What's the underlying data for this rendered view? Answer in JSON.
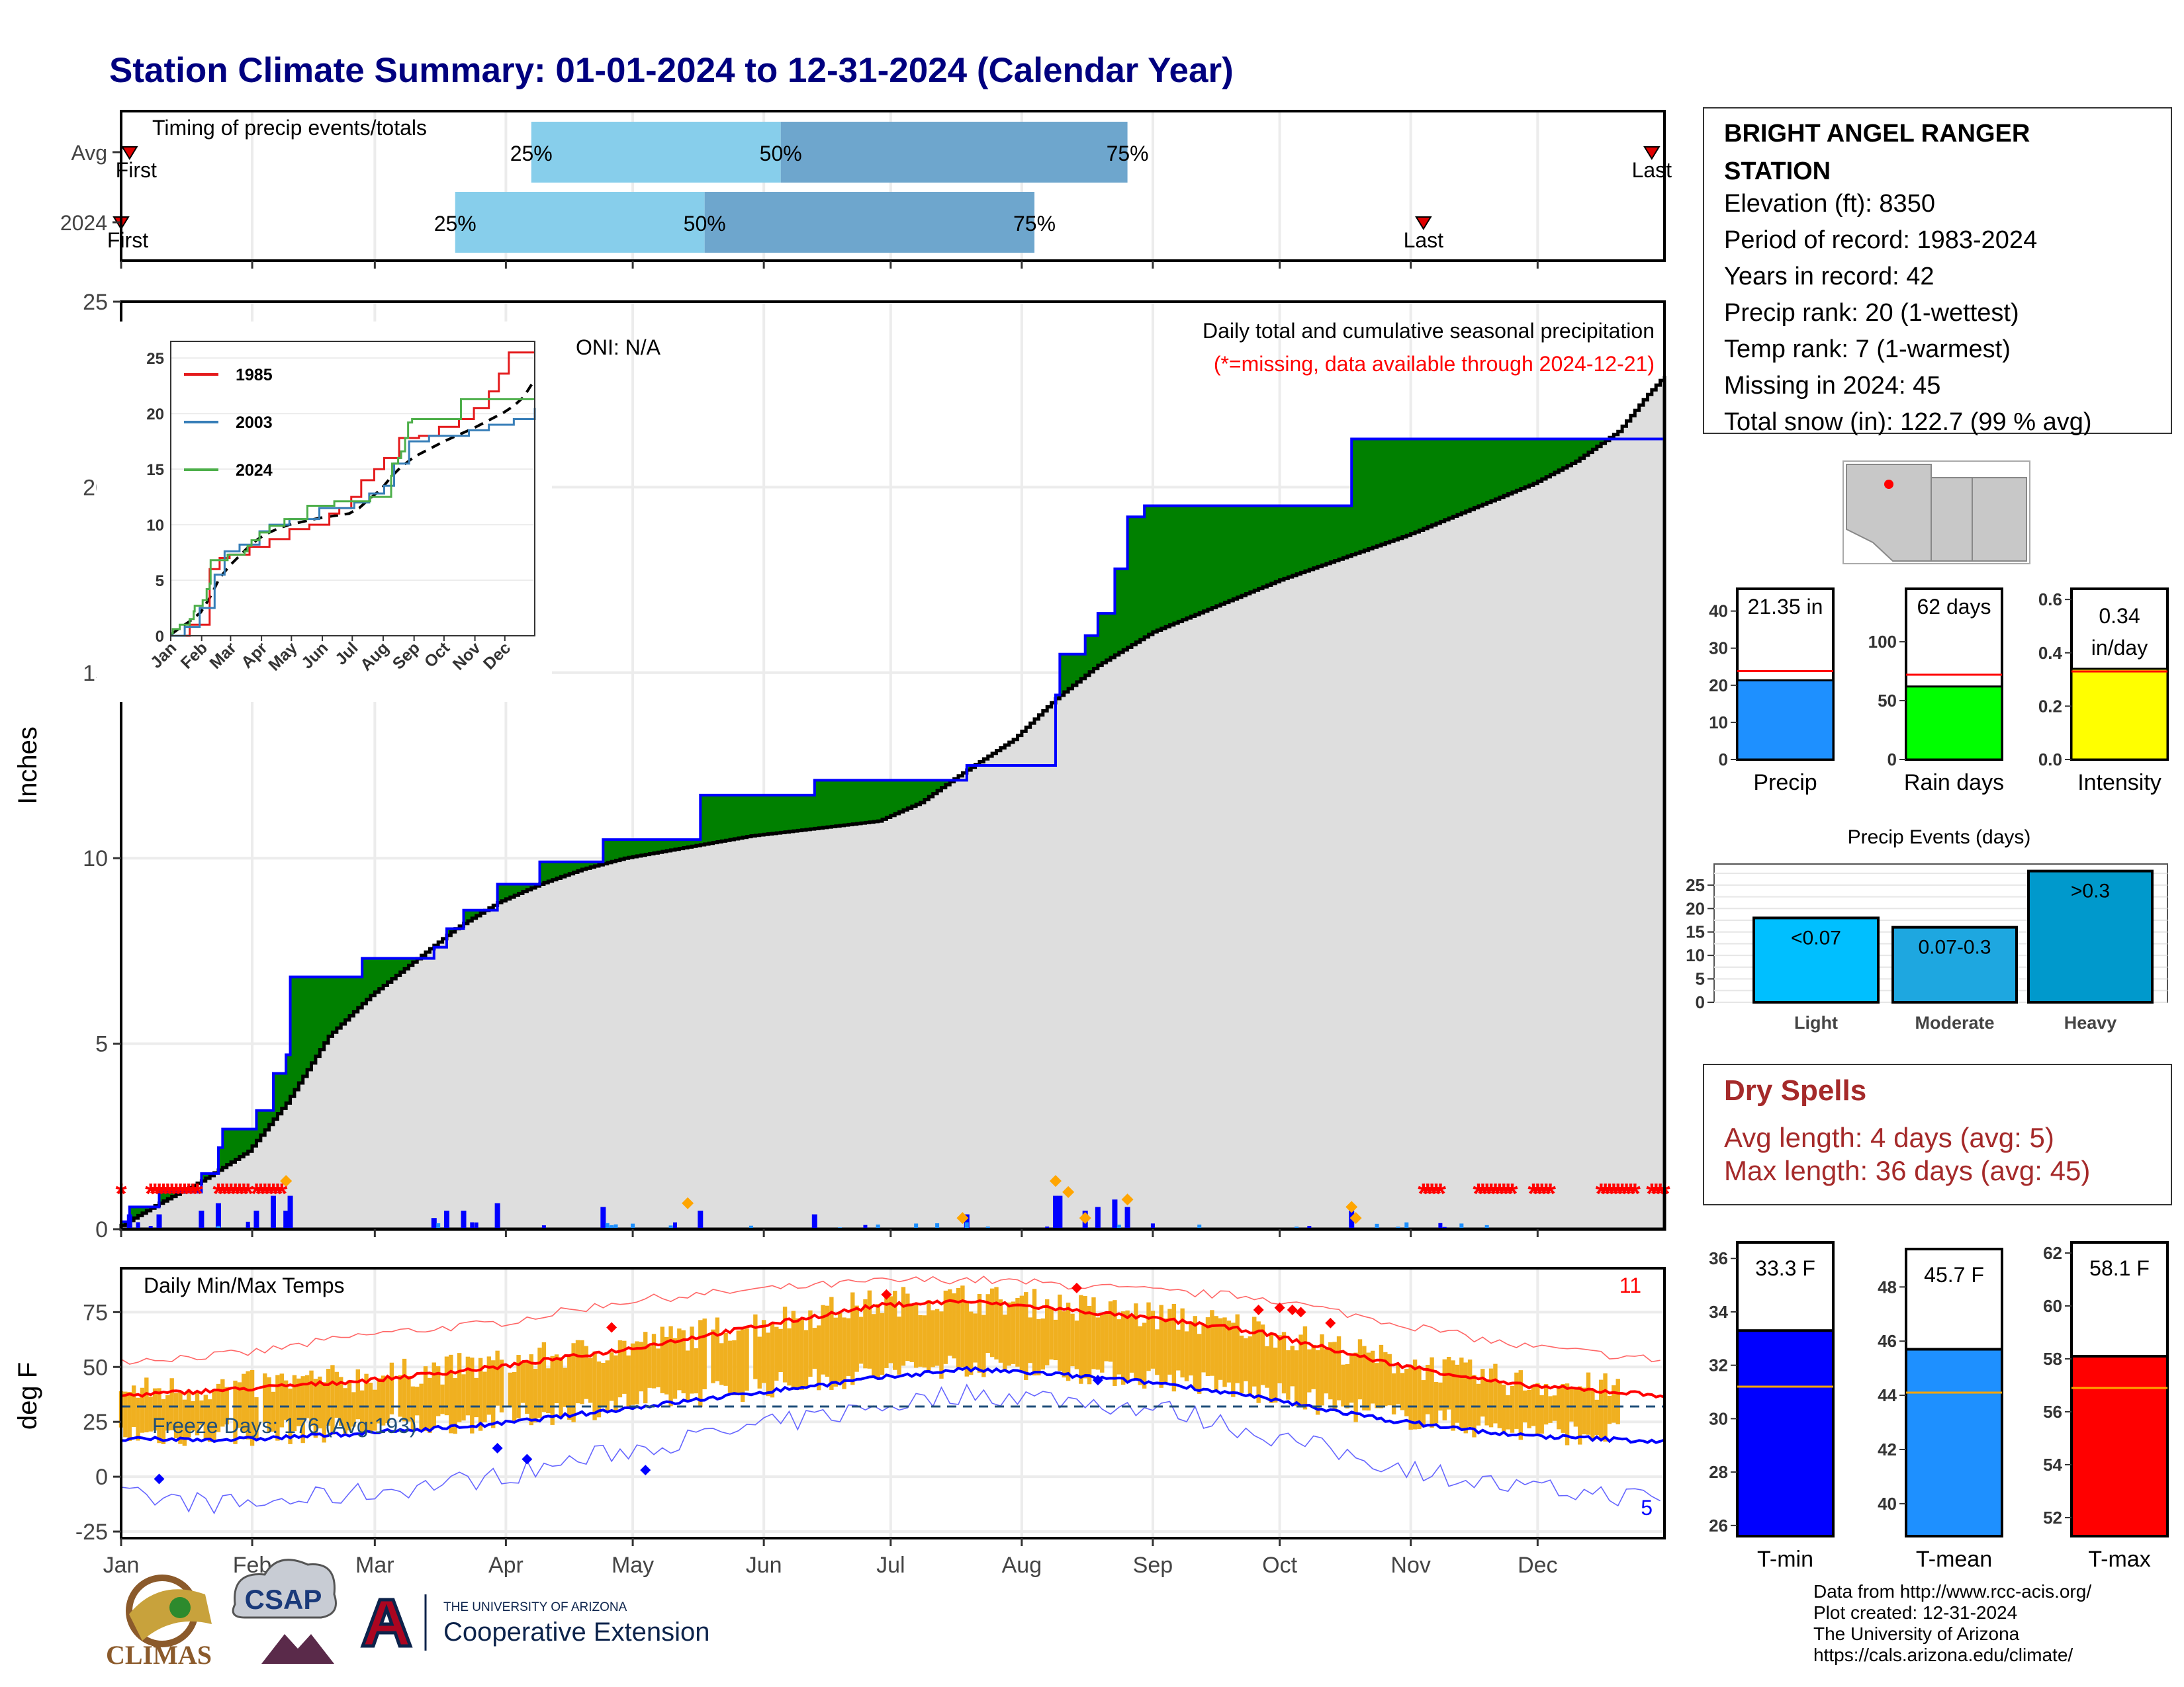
{
  "title": "Station Climate Summary: 01-01-2024 to 12-31-2024 (Calendar Year)",
  "timing": {
    "label": "Timing of precip events/totals",
    "rows": [
      {
        "name": "Avg",
        "first": "2024-01-03",
        "p25": "2024-04-07",
        "p50": "2024-06-05",
        "p75": "2024-08-26",
        "last": "2024-12-28"
      },
      {
        "name": "2024",
        "first": "2024-01-01",
        "p25": "2024-03-20",
        "p50": "2024-05-18",
        "p75": "2024-08-04",
        "last": "2024-11-04"
      }
    ],
    "first_label": "First",
    "last_label": "Last",
    "pct_labels": [
      "25%",
      "50%",
      "75%"
    ]
  },
  "station": {
    "name": "BRIGHT ANGEL RANGER STATION",
    "lines": [
      "Elevation (ft): 8350",
      "Period of record: 1983-2024",
      "Years in record: 42",
      "Precip rank: 20 (1-wettest)",
      "Temp rank: 7 (1-warmest)",
      "Missing in 2024: 45",
      "Total snow (in): 122.7 (99 % avg)"
    ]
  },
  "precip_panel": {
    "ylabel": "Inches",
    "oni": "ONI: N/A",
    "caption1": "Daily total and cumulative seasonal precipitation",
    "caption2": "(*=missing, data available through 2024-12-21)"
  },
  "inset": {
    "series": [
      {
        "name": "1985",
        "color": "#e41a1c"
      },
      {
        "name": "2003",
        "color": "#377eb8"
      },
      {
        "name": "2024",
        "color": "#4daf4a"
      }
    ],
    "months": [
      "Jan",
      "Feb",
      "Mar",
      "Apr",
      "May",
      "Jun",
      "Jul",
      "Aug",
      "Sep",
      "Oct",
      "Nov",
      "Dec"
    ]
  },
  "temp_panel": {
    "ylabel": "deg F",
    "label": "Daily Min/Max Temps",
    "freeze": "Freeze Days: 176 (Avg:193)",
    "record_high_count": "11",
    "record_low_count": "5"
  },
  "months": [
    "Jan",
    "Feb",
    "Mar",
    "Apr",
    "May",
    "Jun",
    "Jul",
    "Aug",
    "Sep",
    "Oct",
    "Nov",
    "Dec"
  ],
  "summary_bars": [
    {
      "name": "Precip",
      "value": 21.35,
      "avg": 23.8,
      "label": "21.35 in",
      "ymax": 46,
      "ticks": [
        0,
        10,
        20,
        30,
        40
      ],
      "color": "#1e90ff"
    },
    {
      "name": "Rain days",
      "value": 62,
      "avg": 72,
      "label": "62 days",
      "ymax": 145,
      "ticks": [
        0,
        50,
        100
      ],
      "color": "#00ff00"
    },
    {
      "name": "Intensity",
      "value": 0.34,
      "avg": 0.33,
      "label": "0.34 in/day",
      "ymax": 0.64,
      "ticks": [
        0.0,
        0.2,
        0.4,
        0.6
      ],
      "color": "#ffff00"
    }
  ],
  "events": {
    "title": "Precip Events (days)",
    "categories": [
      "Light",
      "Moderate",
      "Heavy"
    ],
    "labels": [
      "<0.07",
      "0.07-0.3",
      ">0.3"
    ],
    "values": [
      18,
      16,
      28
    ],
    "colors": [
      "#00bfff",
      "#1ea7e0",
      "#0099cc"
    ]
  },
  "dry_spells": {
    "title": "Dry Spells",
    "line1": "Avg length: 4 days (avg: 5)",
    "line2": "Max length: 36 days (avg: 45)"
  },
  "temp_bars": [
    {
      "name": "T-min",
      "value": 33.3,
      "avg": 31.2,
      "label": "33.3 F",
      "ymin": 25.6,
      "ymax": 36.6,
      "ticks": [
        26,
        28,
        30,
        32,
        34,
        36
      ],
      "color": "#0000ff"
    },
    {
      "name": "T-mean",
      "value": 45.7,
      "avg": 44.1,
      "label": "45.7 F",
      "ymin": 38.8,
      "ymax": 49.4,
      "ticks": [
        40,
        42,
        44,
        46,
        48
      ],
      "color": "#1e90ff"
    },
    {
      "name": "T-max",
      "value": 58.1,
      "avg": 56.9,
      "label": "58.1 F",
      "ymin": 51.3,
      "ymax": 62.4,
      "ticks": [
        52,
        54,
        56,
        58,
        60,
        62
      ],
      "color": "#ff0000"
    }
  ],
  "footer": [
    "Data from http://www.rcc-acis.org/",
    "Plot created: 12-31-2024",
    "The University of Arizona",
    "https://cals.arizona.edu/climate/"
  ],
  "logos": {
    "climas": "CLIMAS",
    "csap": "CSAP",
    "ua_small": "THE UNIVERSITY OF ARIZONA",
    "ua_big": "Cooperative Extension"
  },
  "chart_data": [
    {
      "type": "area",
      "title": "Daily total and cumulative seasonal precipitation",
      "ylabel": "Inches",
      "ylim": [
        0,
        25
      ],
      "x_unit": "day of year 2024",
      "cum_2024": [
        [
          1,
          0.2
        ],
        [
          3,
          0.6
        ],
        [
          10,
          1.0
        ],
        [
          20,
          1.5
        ],
        [
          24,
          2.2
        ],
        [
          25,
          2.7
        ],
        [
          32,
          2.7
        ],
        [
          33,
          3.2
        ],
        [
          37,
          4.2
        ],
        [
          40,
          4.7
        ],
        [
          41,
          6.8
        ],
        [
          58,
          7.3
        ],
        [
          68,
          7.3
        ],
        [
          75,
          7.6
        ],
        [
          78,
          8.1
        ],
        [
          82,
          8.6
        ],
        [
          90,
          9.3
        ],
        [
          100,
          9.9
        ],
        [
          108,
          9.9
        ],
        [
          115,
          10.5
        ],
        [
          124,
          10.5
        ],
        [
          138,
          11.7
        ],
        [
          160,
          11.7
        ],
        [
          165,
          12.1
        ],
        [
          179,
          12.1
        ],
        [
          192,
          12.1
        ],
        [
          201,
          12.5
        ],
        [
          220,
          12.5
        ],
        [
          222,
          14.4
        ],
        [
          223,
          15.5
        ],
        [
          229,
          16.0
        ],
        [
          232,
          16.6
        ],
        [
          236,
          17.8
        ],
        [
          239,
          19.2
        ],
        [
          243,
          19.5
        ],
        [
          290,
          19.5
        ],
        [
          292,
          21.3
        ],
        [
          335,
          21.3
        ],
        [
          356,
          21.3
        ],
        [
          366,
          21.3
        ]
      ],
      "avg_cum": [
        [
          1,
          0.1
        ],
        [
          10,
          0.7
        ],
        [
          20,
          1.3
        ],
        [
          31,
          2.1
        ],
        [
          40,
          3.4
        ],
        [
          50,
          5.2
        ],
        [
          60,
          6.3
        ],
        [
          70,
          7.2
        ],
        [
          80,
          8.1
        ],
        [
          90,
          8.8
        ],
        [
          100,
          9.3
        ],
        [
          110,
          9.7
        ],
        [
          120,
          10.0
        ],
        [
          135,
          10.3
        ],
        [
          150,
          10.6
        ],
        [
          165,
          10.8
        ],
        [
          180,
          11.0
        ],
        [
          190,
          11.5
        ],
        [
          200,
          12.3
        ],
        [
          212,
          13.2
        ],
        [
          222,
          14.3
        ],
        [
          232,
          15.2
        ],
        [
          245,
          16.1
        ],
        [
          260,
          16.8
        ],
        [
          275,
          17.5
        ],
        [
          290,
          18.1
        ],
        [
          305,
          18.7
        ],
        [
          320,
          19.4
        ],
        [
          335,
          20.1
        ],
        [
          345,
          20.7
        ],
        [
          355,
          21.5
        ],
        [
          362,
          22.5
        ],
        [
          366,
          23.0
        ]
      ],
      "avg_timing": {
        "first": "2024-01-03",
        "p25": "2024-04-07",
        "p50": "2024-06-05",
        "p75": "2024-08-26",
        "last": "2024-12-28"
      },
      "y2024_timing": {
        "first": "2024-01-01",
        "p25": "2024-03-20",
        "p50": "2024-05-18",
        "p75": "2024-08-04",
        "last": "2024-11-04"
      }
    },
    {
      "type": "line",
      "title": "Daily Min/Max Temps",
      "ylabel": "deg F",
      "ylim": [
        -28,
        95
      ],
      "avg_max": [
        [
          1,
          37
        ],
        [
          30,
          40
        ],
        [
          60,
          44
        ],
        [
          90,
          50
        ],
        [
          120,
          58
        ],
        [
          150,
          68
        ],
        [
          180,
          78
        ],
        [
          200,
          80
        ],
        [
          220,
          77
        ],
        [
          250,
          71
        ],
        [
          270,
          66
        ],
        [
          300,
          52
        ],
        [
          330,
          42
        ],
        [
          366,
          37
        ]
      ],
      "avg_min": [
        [
          1,
          17
        ],
        [
          30,
          17
        ],
        [
          60,
          20
        ],
        [
          90,
          24
        ],
        [
          120,
          31
        ],
        [
          150,
          38
        ],
        [
          180,
          45
        ],
        [
          200,
          49
        ],
        [
          220,
          47
        ],
        [
          250,
          42
        ],
        [
          270,
          36
        ],
        [
          300,
          26
        ],
        [
          330,
          19
        ],
        [
          366,
          16
        ]
      ],
      "record_high": [
        [
          1,
          53
        ],
        [
          30,
          56
        ],
        [
          60,
          65
        ],
        [
          90,
          70
        ],
        [
          120,
          80
        ],
        [
          150,
          85
        ],
        [
          180,
          89
        ],
        [
          200,
          90
        ],
        [
          220,
          88
        ],
        [
          250,
          84
        ],
        [
          270,
          82
        ],
        [
          300,
          71
        ],
        [
          330,
          60
        ],
        [
          366,
          53
        ]
      ],
      "record_low": [
        [
          1,
          -9
        ],
        [
          30,
          -13
        ],
        [
          60,
          -7
        ],
        [
          90,
          0
        ],
        [
          120,
          12
        ],
        [
          150,
          22
        ],
        [
          180,
          32
        ],
        [
          200,
          38
        ],
        [
          220,
          36
        ],
        [
          250,
          30
        ],
        [
          270,
          20
        ],
        [
          300,
          6
        ],
        [
          330,
          -5
        ],
        [
          366,
          -10
        ]
      ]
    }
  ]
}
